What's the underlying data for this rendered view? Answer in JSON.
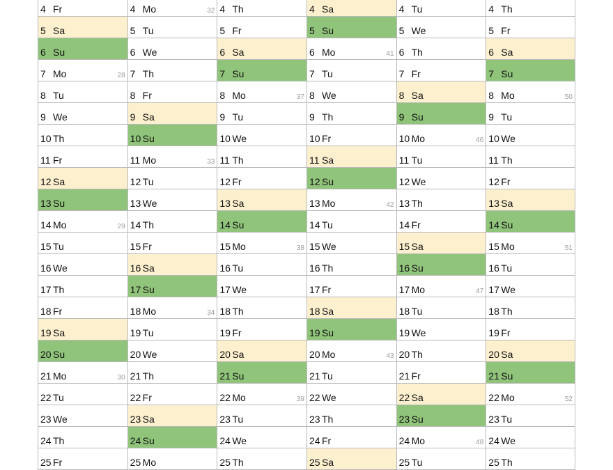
{
  "colors": {
    "saturday": "#fdf0cf",
    "sunday": "#91c47b",
    "grid": "#b9b9b9"
  },
  "rows": [
    [
      {
        "d": "4",
        "n": "Fr"
      },
      {
        "d": "4",
        "n": "Mo",
        "w": "32"
      },
      {
        "d": "4",
        "n": "Th"
      },
      {
        "d": "4",
        "n": "Sa"
      },
      {
        "d": "4",
        "n": "Tu"
      },
      {
        "d": "4",
        "n": "Th"
      }
    ],
    [
      {
        "d": "5",
        "n": "Sa"
      },
      {
        "d": "5",
        "n": "Tu"
      },
      {
        "d": "5",
        "n": "Fr"
      },
      {
        "d": "5",
        "n": "Su"
      },
      {
        "d": "5",
        "n": "We"
      },
      {
        "d": "5",
        "n": "Fr"
      }
    ],
    [
      {
        "d": "6",
        "n": "Su"
      },
      {
        "d": "6",
        "n": "We"
      },
      {
        "d": "6",
        "n": "Sa"
      },
      {
        "d": "6",
        "n": "Mo",
        "w": "41"
      },
      {
        "d": "6",
        "n": "Th"
      },
      {
        "d": "6",
        "n": "Sa"
      }
    ],
    [
      {
        "d": "7",
        "n": "Mo",
        "w": "28"
      },
      {
        "d": "7",
        "n": "Th"
      },
      {
        "d": "7",
        "n": "Su"
      },
      {
        "d": "7",
        "n": "Tu"
      },
      {
        "d": "7",
        "n": "Fr"
      },
      {
        "d": "7",
        "n": "Su"
      }
    ],
    [
      {
        "d": "8",
        "n": "Tu"
      },
      {
        "d": "8",
        "n": "Fr"
      },
      {
        "d": "8",
        "n": "Mo",
        "w": "37"
      },
      {
        "d": "8",
        "n": "We"
      },
      {
        "d": "8",
        "n": "Sa"
      },
      {
        "d": "8",
        "n": "Mo",
        "w": "50"
      }
    ],
    [
      {
        "d": "9",
        "n": "We"
      },
      {
        "d": "9",
        "n": "Sa"
      },
      {
        "d": "9",
        "n": "Tu"
      },
      {
        "d": "9",
        "n": "Th"
      },
      {
        "d": "9",
        "n": "Su"
      },
      {
        "d": "9",
        "n": "Tu"
      }
    ],
    [
      {
        "d": "10",
        "n": "Th"
      },
      {
        "d": "10",
        "n": "Su"
      },
      {
        "d": "10",
        "n": "We"
      },
      {
        "d": "10",
        "n": "Fr"
      },
      {
        "d": "10",
        "n": "Mo",
        "w": "46"
      },
      {
        "d": "10",
        "n": "We"
      }
    ],
    [
      {
        "d": "11",
        "n": "Fr"
      },
      {
        "d": "11",
        "n": "Mo",
        "w": "33"
      },
      {
        "d": "11",
        "n": "Th"
      },
      {
        "d": "11",
        "n": "Sa"
      },
      {
        "d": "11",
        "n": "Tu"
      },
      {
        "d": "11",
        "n": "Th"
      }
    ],
    [
      {
        "d": "12",
        "n": "Sa"
      },
      {
        "d": "12",
        "n": "Tu"
      },
      {
        "d": "12",
        "n": "Fr"
      },
      {
        "d": "12",
        "n": "Su"
      },
      {
        "d": "12",
        "n": "We"
      },
      {
        "d": "12",
        "n": "Fr"
      }
    ],
    [
      {
        "d": "13",
        "n": "Su"
      },
      {
        "d": "13",
        "n": "We"
      },
      {
        "d": "13",
        "n": "Sa"
      },
      {
        "d": "13",
        "n": "Mo",
        "w": "42"
      },
      {
        "d": "13",
        "n": "Th"
      },
      {
        "d": "13",
        "n": "Sa"
      }
    ],
    [
      {
        "d": "14",
        "n": "Mo",
        "w": "29"
      },
      {
        "d": "14",
        "n": "Th"
      },
      {
        "d": "14",
        "n": "Su"
      },
      {
        "d": "14",
        "n": "Tu"
      },
      {
        "d": "14",
        "n": "Fr"
      },
      {
        "d": "14",
        "n": "Su"
      }
    ],
    [
      {
        "d": "15",
        "n": "Tu"
      },
      {
        "d": "15",
        "n": "Fr"
      },
      {
        "d": "15",
        "n": "Mo",
        "w": "38"
      },
      {
        "d": "15",
        "n": "We"
      },
      {
        "d": "15",
        "n": "Sa"
      },
      {
        "d": "15",
        "n": "Mo",
        "w": "51"
      }
    ],
    [
      {
        "d": "16",
        "n": "We"
      },
      {
        "d": "16",
        "n": "Sa"
      },
      {
        "d": "16",
        "n": "Tu"
      },
      {
        "d": "16",
        "n": "Th"
      },
      {
        "d": "16",
        "n": "Su"
      },
      {
        "d": "16",
        "n": "Tu"
      }
    ],
    [
      {
        "d": "17",
        "n": "Th"
      },
      {
        "d": "17",
        "n": "Su"
      },
      {
        "d": "17",
        "n": "We"
      },
      {
        "d": "17",
        "n": "Fr"
      },
      {
        "d": "17",
        "n": "Mo",
        "w": "47"
      },
      {
        "d": "17",
        "n": "We"
      }
    ],
    [
      {
        "d": "18",
        "n": "Fr"
      },
      {
        "d": "18",
        "n": "Mo",
        "w": "34"
      },
      {
        "d": "18",
        "n": "Th"
      },
      {
        "d": "18",
        "n": "Sa"
      },
      {
        "d": "18",
        "n": "Tu"
      },
      {
        "d": "18",
        "n": "Th"
      }
    ],
    [
      {
        "d": "19",
        "n": "Sa"
      },
      {
        "d": "19",
        "n": "Tu"
      },
      {
        "d": "19",
        "n": "Fr"
      },
      {
        "d": "19",
        "n": "Su"
      },
      {
        "d": "19",
        "n": "We"
      },
      {
        "d": "19",
        "n": "Fr"
      }
    ],
    [
      {
        "d": "20",
        "n": "Su"
      },
      {
        "d": "20",
        "n": "We"
      },
      {
        "d": "20",
        "n": "Sa"
      },
      {
        "d": "20",
        "n": "Mo",
        "w": "43"
      },
      {
        "d": "20",
        "n": "Th"
      },
      {
        "d": "20",
        "n": "Sa"
      }
    ],
    [
      {
        "d": "21",
        "n": "Mo",
        "w": "30"
      },
      {
        "d": "21",
        "n": "Th"
      },
      {
        "d": "21",
        "n": "Su"
      },
      {
        "d": "21",
        "n": "Tu"
      },
      {
        "d": "21",
        "n": "Fr"
      },
      {
        "d": "21",
        "n": "Su"
      }
    ],
    [
      {
        "d": "22",
        "n": "Tu"
      },
      {
        "d": "22",
        "n": "Fr"
      },
      {
        "d": "22",
        "n": "Mo",
        "w": "39"
      },
      {
        "d": "22",
        "n": "We"
      },
      {
        "d": "22",
        "n": "Sa"
      },
      {
        "d": "22",
        "n": "Mo",
        "w": "52"
      }
    ],
    [
      {
        "d": "23",
        "n": "We"
      },
      {
        "d": "23",
        "n": "Sa"
      },
      {
        "d": "23",
        "n": "Tu"
      },
      {
        "d": "23",
        "n": "Th"
      },
      {
        "d": "23",
        "n": "Su"
      },
      {
        "d": "23",
        "n": "Tu"
      }
    ],
    [
      {
        "d": "24",
        "n": "Th"
      },
      {
        "d": "24",
        "n": "Su"
      },
      {
        "d": "24",
        "n": "We"
      },
      {
        "d": "24",
        "n": "Fr"
      },
      {
        "d": "24",
        "n": "Mo",
        "w": "48"
      },
      {
        "d": "24",
        "n": "We"
      }
    ],
    [
      {
        "d": "25",
        "n": "Fr"
      },
      {
        "d": "25",
        "n": "Mo"
      },
      {
        "d": "25",
        "n": "Th"
      },
      {
        "d": "25",
        "n": "Sa"
      },
      {
        "d": "25",
        "n": "Tu"
      },
      {
        "d": "25",
        "n": "Th"
      }
    ]
  ]
}
